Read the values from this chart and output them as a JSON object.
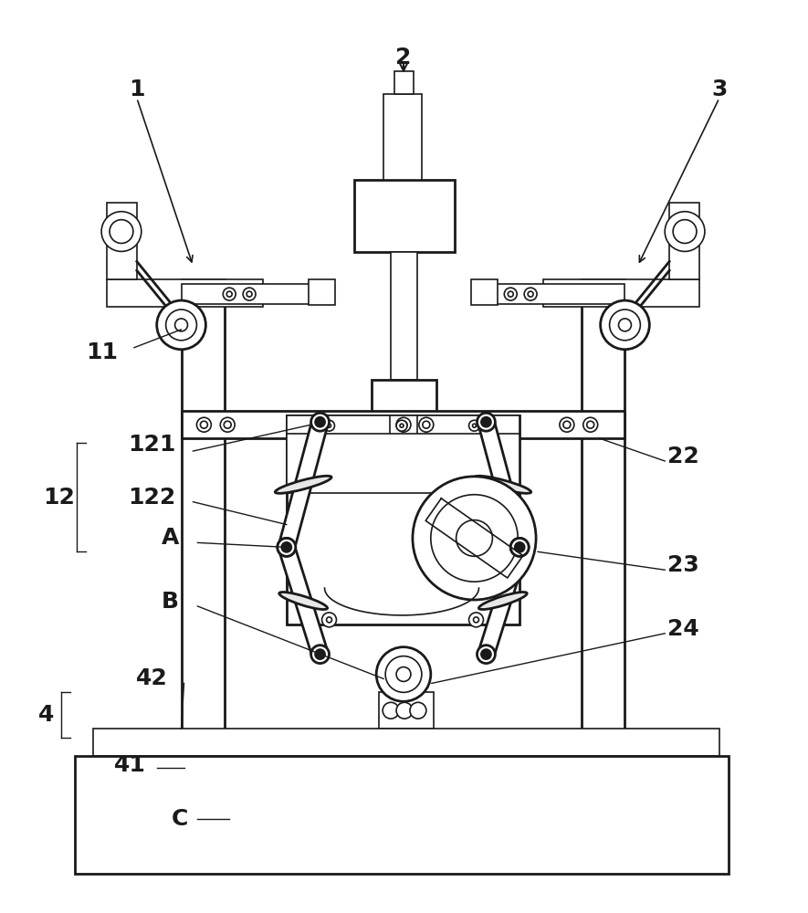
{
  "bg_color": "#ffffff",
  "lc": "#1a1a1a",
  "lw": 1.2,
  "lw2": 2.0,
  "lw3": 1.5,
  "fig_w": 8.85,
  "fig_h": 10.0,
  "xlim": [
    0,
    885
  ],
  "ylim": [
    0,
    1000
  ]
}
